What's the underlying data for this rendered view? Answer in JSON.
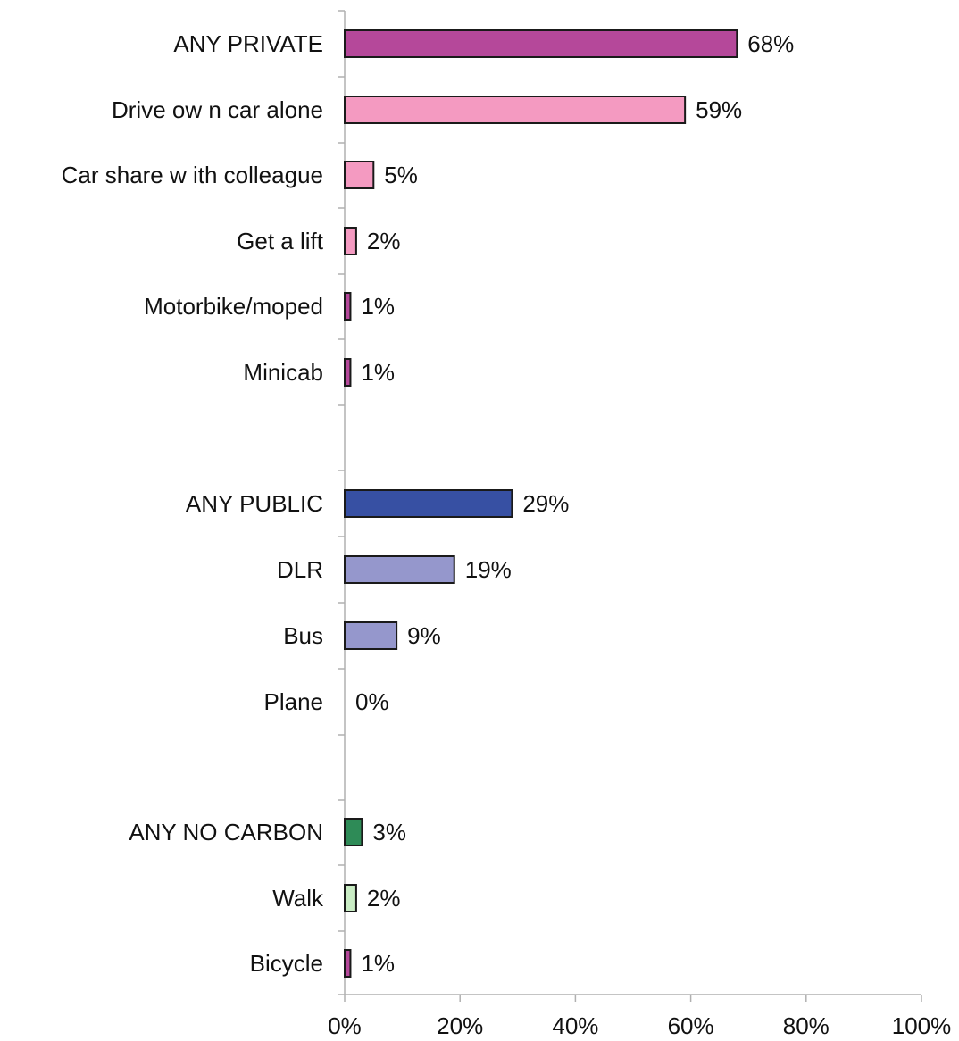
{
  "chart_data": {
    "type": "bar",
    "orientation": "horizontal",
    "title": "",
    "xlabel": "",
    "ylabel": "",
    "xlim": [
      0,
      100
    ],
    "x_ticks": [
      "0%",
      "20%",
      "40%",
      "60%",
      "80%",
      "100%"
    ],
    "grid": false,
    "legend": "none",
    "categories": [
      {
        "label": "ANY PRIVATE",
        "value": 68,
        "value_label": "68%",
        "color": "#b5489a"
      },
      {
        "label": "Drive ow n car alone",
        "value": 59,
        "value_label": "59%",
        "color": "#f49ac1"
      },
      {
        "label": "Car share w ith colleague",
        "value": 5,
        "value_label": "5%",
        "color": "#f49ac1"
      },
      {
        "label": "Get a lift",
        "value": 2,
        "value_label": "2%",
        "color": "#f49ac1"
      },
      {
        "label": "Motorbike/moped",
        "value": 1,
        "value_label": "1%",
        "color": "#b5489a"
      },
      {
        "label": "Minicab",
        "value": 1,
        "value_label": "1%",
        "color": "#b5489a"
      },
      {
        "label": "ANY PUBLIC",
        "value": 29,
        "value_label": "29%",
        "color": "#3750a3"
      },
      {
        "label": "DLR",
        "value": 19,
        "value_label": "19%",
        "color": "#9597cc"
      },
      {
        "label": "Bus",
        "value": 9,
        "value_label": "9%",
        "color": "#9597cc"
      },
      {
        "label": "Plane",
        "value": 0,
        "value_label": "0%",
        "color": "#9597cc"
      },
      {
        "label": "ANY NO CARBON",
        "value": 3,
        "value_label": "3%",
        "color": "#2e8b57"
      },
      {
        "label": "Walk",
        "value": 2,
        "value_label": "2%",
        "color": "#c9ecc4"
      },
      {
        "label": "Bicycle",
        "value": 1,
        "value_label": "1%",
        "color": "#b5489a"
      }
    ]
  }
}
